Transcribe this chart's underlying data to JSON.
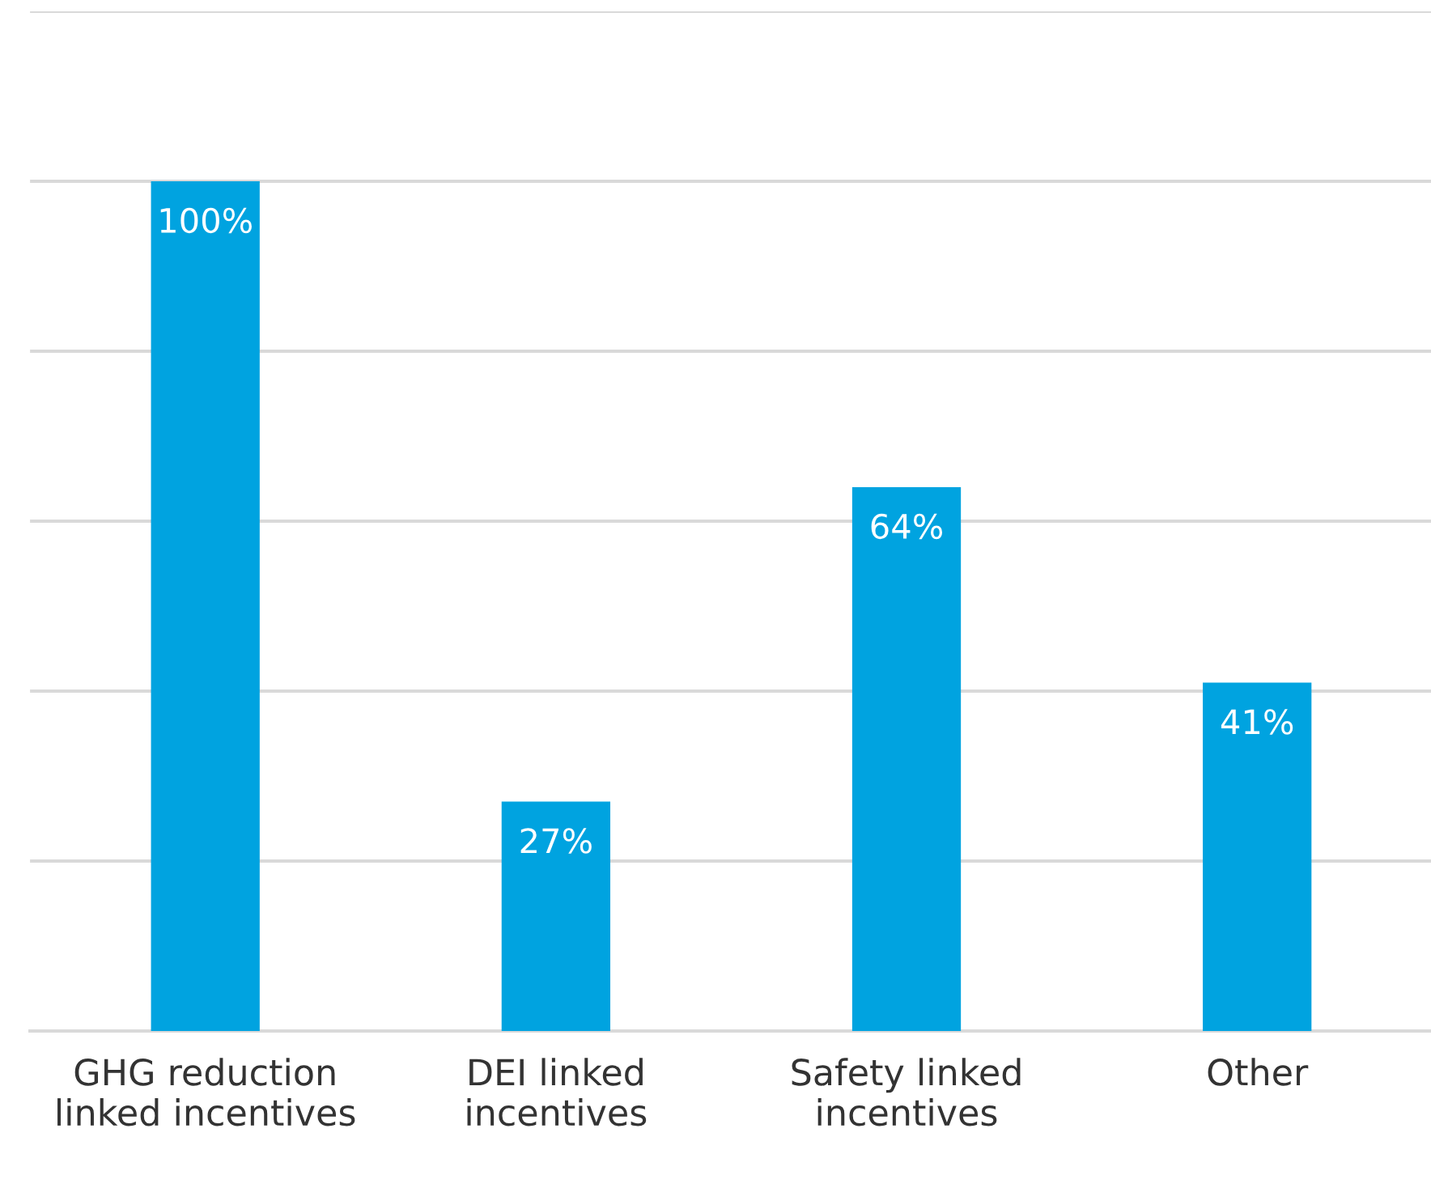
{
  "chart_data": {
    "type": "bar",
    "categories": [
      "GHG reduction\nlinked incentives",
      "DEI linked\nincentives",
      "Safety linked\nincentives",
      "Other"
    ],
    "values": [
      100,
      27,
      64,
      41
    ],
    "value_labels": [
      "100%",
      "27%",
      "64%",
      "41%"
    ],
    "color": "#00a3e0",
    "ylim": [
      0,
      120
    ],
    "yticks": [
      {
        "value": 0,
        "label": null
      },
      {
        "value": 20,
        "label": null
      },
      {
        "value": 40,
        "label": null
      },
      {
        "value": 60,
        "label": null
      },
      {
        "value": 80,
        "label": null
      },
      {
        "value": 100,
        "label": null
      },
      {
        "value": 120,
        "label": null
      }
    ],
    "tick_labels": "x",
    "grid": "y",
    "legend": false
  }
}
